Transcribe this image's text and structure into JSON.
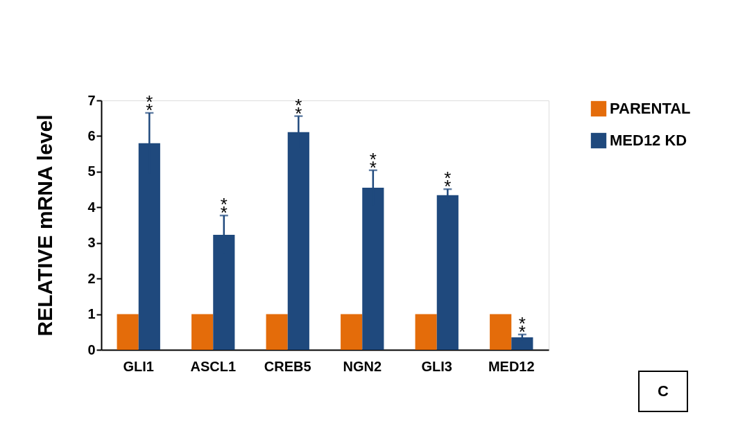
{
  "chart_data": {
    "type": "bar",
    "ylabel": "RELATIVE mRNA level",
    "categories": [
      "GLI1",
      "ASCL1",
      "CREB5",
      "NGN2",
      "GLI3",
      "MED12"
    ],
    "series": [
      {
        "name": "PARENTAL",
        "color": "#e46c0a",
        "values": [
          1,
          1,
          1,
          1,
          1,
          1
        ]
      },
      {
        "name": "MED12 KD",
        "color": "#1f497d",
        "values": [
          5.8,
          3.23,
          6.11,
          4.55,
          4.34,
          0.35
        ],
        "errors": [
          0.85,
          0.54,
          0.45,
          0.49,
          0.17,
          0.08
        ]
      }
    ],
    "ylim": [
      0,
      7
    ],
    "yticks": [
      0,
      1,
      2,
      3,
      4,
      5,
      6,
      7
    ],
    "grid": false,
    "legend": "right",
    "annotations": [
      "**",
      "**",
      "**",
      "**",
      "**",
      "**",
      "C"
    ]
  }
}
